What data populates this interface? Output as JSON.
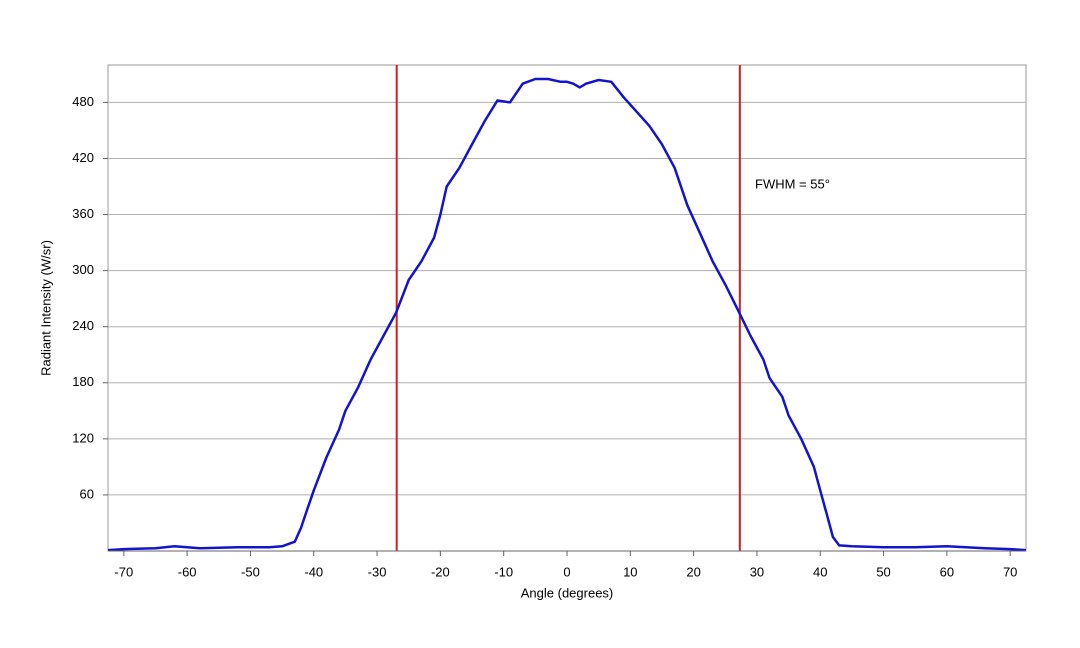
{
  "chart_data": {
    "type": "line",
    "x_label": "Angle (degrees)",
    "y_label": "Radiant Intensity (W/sr)",
    "annotation": "FWHM = 55°",
    "x": [
      -72.5,
      -70,
      -65,
      -62,
      -58,
      -52,
      -47,
      -45,
      -43,
      -42,
      -41,
      -40,
      -38,
      -36,
      -35,
      -33,
      -31,
      -29,
      -27,
      -25,
      -23,
      -21,
      -20,
      -19,
      -17,
      -15,
      -13,
      -11,
      -9,
      -7,
      -5,
      -3,
      -1,
      0,
      1,
      2,
      3,
      5,
      7,
      9,
      11,
      13,
      15,
      17,
      19,
      21,
      23,
      25,
      27,
      29,
      31,
      32,
      34,
      35,
      37,
      39,
      40,
      41,
      42,
      43,
      45,
      50,
      55,
      60,
      63,
      66,
      70,
      72.5
    ],
    "series": [
      {
        "name": "Radiant Intensity",
        "color": "#1414cc",
        "values": [
          1,
          2,
          3,
          5,
          3,
          4,
          4,
          5,
          10,
          25,
          45,
          65,
          100,
          130,
          150,
          175,
          205,
          230,
          255,
          290,
          310,
          335,
          360,
          390,
          410,
          435,
          460,
          482,
          480,
          500,
          505,
          505,
          502,
          502,
          500,
          496,
          500,
          504,
          502,
          485,
          470,
          455,
          435,
          410,
          370,
          340,
          310,
          285,
          258,
          230,
          205,
          185,
          165,
          145,
          120,
          90,
          65,
          40,
          15,
          6,
          5,
          4,
          4,
          5,
          4,
          3,
          2,
          1
        ]
      }
    ],
    "vlines": [
      {
        "x": -26.9,
        "color": "#cc2020"
      },
      {
        "x": 27.3,
        "color": "#cc2020"
      }
    ],
    "xlim": [
      -72.5,
      72.5
    ],
    "xticks": [
      -70,
      -60,
      -50,
      -40,
      -30,
      -20,
      -10,
      0,
      10,
      20,
      30,
      40,
      50,
      60,
      70
    ],
    "ylim": [
      0,
      520
    ],
    "yticks": [
      60,
      120,
      180,
      240,
      300,
      360,
      420,
      480
    ],
    "grid": true
  }
}
